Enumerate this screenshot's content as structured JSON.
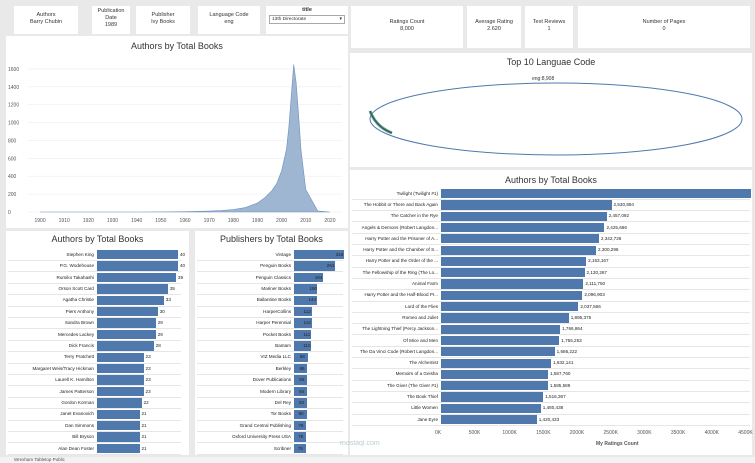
{
  "filters": {
    "authors": {
      "label": "Authors",
      "value": "Barry Chubin"
    },
    "publication_date": {
      "label": "Publication Date",
      "value": "1989"
    },
    "publisher": {
      "label": "Publisher",
      "value": "Ivy Books"
    },
    "language_code": {
      "label": "Language Code",
      "value": "eng"
    },
    "title": {
      "label": "title",
      "value": "13th Directorate"
    }
  },
  "kpis": {
    "ratings_count": {
      "label": "Ratings Count",
      "value": "8,000"
    },
    "average_rating": {
      "label": "Average Rating",
      "value": "2.620"
    },
    "text_reviews": {
      "label": "Text Reviews",
      "value": "1"
    },
    "number_of_pages": {
      "label": "Number of Pages",
      "value": "0"
    }
  },
  "charts": [
    {
      "chart_data": {
        "type": "area",
        "title": "Authors by Total Books",
        "x": [
          1900,
          1920,
          1940,
          1950,
          1960,
          1965,
          1970,
          1975,
          1980,
          1985,
          1990,
          1993,
          1996,
          1998,
          2000,
          2002,
          2003,
          2004,
          2005,
          2006,
          2007,
          2008,
          2010,
          2015,
          2020
        ],
        "values": [
          0,
          0,
          0,
          1,
          3,
          6,
          10,
          16,
          28,
          50,
          100,
          160,
          240,
          320,
          460,
          700,
          950,
          1300,
          1650,
          1450,
          1100,
          700,
          250,
          10,
          0
        ],
        "xticks": [
          "1900",
          "1910",
          "1920",
          "1930",
          "1940",
          "1950",
          "1960",
          "1970",
          "1980",
          "1990",
          "2000",
          "2010",
          "2020"
        ],
        "yticks": [
          "0",
          "200",
          "400",
          "600",
          "800",
          "1000",
          "1200",
          "1400",
          "1600"
        ],
        "ylim": [
          0,
          1700
        ],
        "xlim": [
          1895,
          2025
        ]
      }
    },
    {
      "chart_data": {
        "type": "pie",
        "title": "Top 10 Languae Code",
        "categories": [
          "eng"
        ],
        "labels": [
          "eng:8,908"
        ],
        "values": [
          8908
        ]
      }
    },
    {
      "chart_data": {
        "type": "bar",
        "title": "Authors by Total Books",
        "categories": [
          "Stephen King",
          "P.G. Wodehouse",
          "Rumiko Takahashi",
          "Orson Scott Card",
          "Agatha Christie",
          "Piers Anthony",
          "Sandra Brown",
          "Mercedes Lackey",
          "Dick Francis",
          "Terry Pratchett",
          "Margaret Weis/Tracy Hickman",
          "Laurell K. Hamilton",
          "James Patterson",
          "Gordon Korman",
          "Janet Evanovich",
          "Dan Simmons",
          "Bill Bryson",
          "Alan Dean Foster"
        ],
        "values": [
          40,
          40,
          39,
          35,
          33,
          30,
          29,
          29,
          28,
          23,
          23,
          23,
          23,
          22,
          21,
          21,
          21,
          21
        ],
        "labels": [
          "40",
          "40",
          "39",
          "35",
          "33",
          "30",
          "29",
          "29",
          "28",
          "23",
          "23",
          "23",
          "23",
          "22",
          "21",
          "21",
          "21",
          "21"
        ],
        "xlim": [
          0,
          42
        ]
      }
    },
    {
      "chart_data": {
        "type": "bar",
        "title": "Publishers by Total Books",
        "categories": [
          "Vintage",
          "Penguin Books",
          "Penguin Classics",
          "Mariner Books",
          "Ballantine Books",
          "HarperCollins",
          "Harper Perennial",
          "Pocket Books",
          "Bantam",
          "VIZ Media LLC",
          "Berkley",
          "Dover Publications",
          "Modern Library",
          "Del Rey",
          "Tor Books",
          "Grand Central Publishing",
          "Oxford University Press USA",
          "Scribner"
        ],
        "values": [
          318,
          261,
          184,
          150,
          144,
          112,
          112,
          111,
          110,
          88,
          86,
          85,
          84,
          83,
          80,
          79,
          78,
          76
        ],
        "labels": [
          "318",
          "261",
          "184",
          "150",
          "144",
          "112",
          "112",
          "111",
          "110",
          "88",
          "86",
          "85",
          "84",
          "83",
          "80",
          "79",
          "78",
          "76"
        ],
        "xlim": [
          0,
          320
        ]
      }
    },
    {
      "chart_data": {
        "type": "bar",
        "title": "Authors by Total Books",
        "xlabel": "My Ratings Count",
        "categories": [
          "Twilight (Twilight #1)",
          "The Hobbit or There and Back Again",
          "The Catcher in the Rye",
          "Angels & Demons (Robert Langdon...",
          "Harry Potter and the Prisoner of A...",
          "Harry Potter and the Chamber of S...",
          "Harry Potter and the Order of the ...",
          "The Fellowship of the Ring (The Lo...",
          "Animal Farm",
          "Harry Potter and the Half-Blood Pr...",
          "Lord of the Flies",
          "Romeo and Juliet",
          "The Lightning Thief (Percy Jackson...",
          "Of Mice and Men",
          "The Da Vinci Code (Robert Langdon...",
          "The Alchemist",
          "Memoirs of a Geisha",
          "The Giver (The Giver #1)",
          "The Book Thief",
          "Little Women",
          "Jane Eyre"
        ],
        "values": [
          4597666,
          2530894,
          2457092,
          2425666,
          2342726,
          2300296,
          2153167,
          2130267,
          2111750,
          2096903,
          2037566,
          1895375,
          1766864,
          1755253,
          1686222,
          1632141,
          1587760,
          1585589,
          1516367,
          1480438,
          1420433
        ],
        "labels": [
          "",
          "2,530,894",
          "2,457,092",
          "2,425,666",
          "2,342,726",
          "2,300,296",
          "2,153,167",
          "2,130,267",
          "2,111,750",
          "2,096,903",
          "2,037,566",
          "1,895,375",
          "1,766,864",
          "1,755,253",
          "1,686,222",
          "1,632,141",
          "1,587,760",
          "1,585,589",
          "1,516,367",
          "1,480,438",
          "1,420,433"
        ],
        "xticks": [
          "0K",
          "500K",
          "1000K",
          "1500K",
          "2000K",
          "2500K",
          "3000K",
          "3500K",
          "4000K",
          "4500K"
        ],
        "xlim": [
          0,
          4600000
        ]
      }
    }
  ],
  "bottom": {
    "tab_label": "Wrexham Tabletop Public",
    "watermark": "mostaql.com"
  }
}
